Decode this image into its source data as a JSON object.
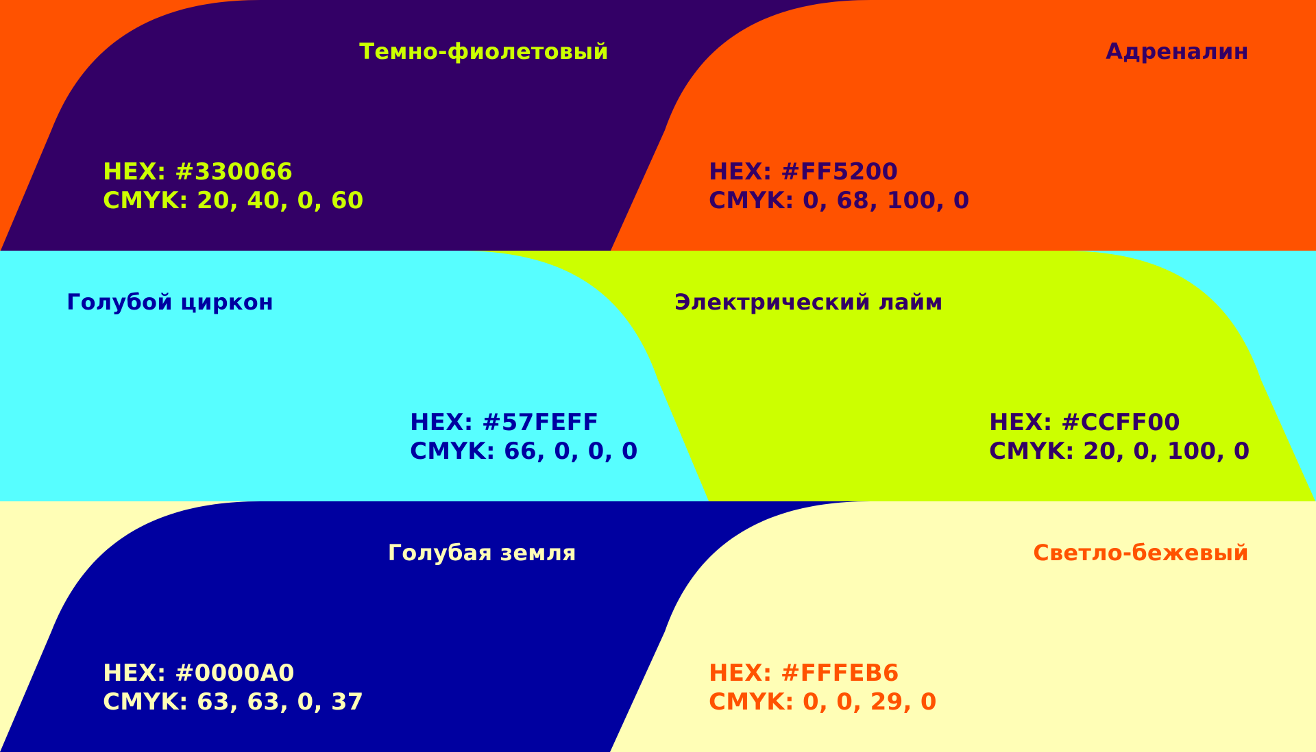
{
  "colors": [
    {
      "name": "Темно-фиолетовый",
      "hex_label": "HEX: #330066",
      "cmyk_label": "CMYK: 20, 40, 0, 60",
      "fill": "#330066",
      "text_color": "#CCFF00"
    },
    {
      "name": "Адреналин",
      "hex_label": "HEX: #FF5200",
      "cmyk_label": "CMYK: 0, 68, 100, 0",
      "fill": "#FF5200",
      "text_color": "#330066"
    },
    {
      "name": "Голубой циркон",
      "hex_label": "HEX: #57FEFF",
      "cmyk_label": "CMYK: 66, 0, 0, 0",
      "fill": "#57FEFF",
      "text_color": "#0000A0"
    },
    {
      "name": "Электрический лайм",
      "hex_label": "HEX: #CCFF00",
      "cmyk_label": "CMYK: 20, 0, 100, 0",
      "fill": "#CCFF00",
      "text_color": "#330066"
    },
    {
      "name": "Голубая земля",
      "hex_label": "HEX: #0000A0",
      "cmyk_label": "CMYK: 63, 63, 0, 37",
      "fill": "#0000A0",
      "text_color": "#FFFEB6"
    },
    {
      "name": "Светло-бежевый",
      "hex_label": "HEX: #FFFEB6",
      "cmyk_label": "CMYK: 0, 0, 29, 0",
      "fill": "#FFFEB6",
      "text_color": "#FF5200"
    }
  ]
}
